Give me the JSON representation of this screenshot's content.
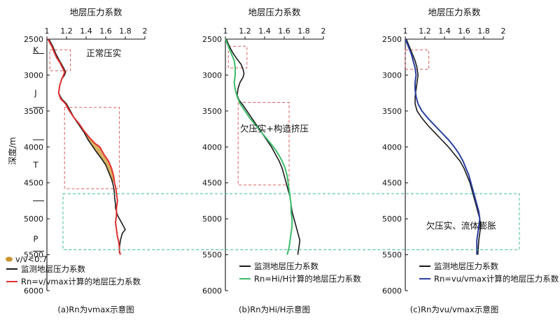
{
  "chart_data": [
    {
      "type": "line",
      "title": "地层压力系数",
      "ylabel": "深度/m",
      "xlim": [
        1,
        2
      ],
      "ylim": [
        6000,
        2500
      ],
      "xticks": [
        "1",
        "1.2",
        "1.4",
        "1.6",
        "1.8",
        "2"
      ],
      "yticks": [
        "2500",
        "3000",
        "3500",
        "4000",
        "4500",
        "5000",
        "5500",
        "6000"
      ],
      "grid": false,
      "legend": "bottom-left",
      "strata": [
        {
          "label": "K",
          "depth": 2650
        },
        {
          "label": "J",
          "depth": 3250
        },
        {
          "label": "T",
          "depth": 4250
        },
        {
          "label": "P",
          "depth": 5280
        }
      ],
      "strata_boundaries": [
        2700,
        3450,
        3900,
        4750,
        5450
      ],
      "annotations": [
        {
          "text": "正常压实",
          "x": 1.58,
          "y": 2700
        }
      ],
      "dashed_boxes": [
        {
          "x": [
            1.03,
            1.24
          ],
          "y": [
            2650,
            2940
          ],
          "color": "#e05a5a"
        },
        {
          "x": [
            1.18,
            1.74
          ],
          "y": [
            3450,
            4580
          ],
          "color": "#e05a5a"
        }
      ],
      "shaded_label": "v/v<0.7",
      "series": [
        {
          "name": "监测地层压力系数",
          "color": "#1a1a1a",
          "x": [
            1.02,
            1.06,
            1.09,
            1.12,
            1.15,
            1.17,
            1.19,
            1.18,
            1.15,
            1.13,
            1.12,
            1.15,
            1.2,
            1.24,
            1.28,
            1.33,
            1.38,
            1.42,
            1.46,
            1.5,
            1.55,
            1.6,
            1.63,
            1.66,
            1.68,
            1.69,
            1.69,
            1.7,
            1.7,
            1.71,
            1.72,
            1.74,
            1.76,
            1.78,
            1.8,
            1.77,
            1.75,
            1.74,
            1.74
          ],
          "y": [
            2500,
            2600,
            2700,
            2780,
            2850,
            2900,
            2960,
            3000,
            3060,
            3150,
            3250,
            3330,
            3400,
            3500,
            3600,
            3700,
            3800,
            3900,
            3980,
            4060,
            4150,
            4250,
            4350,
            4450,
            4550,
            4650,
            4700,
            4800,
            4850,
            4900,
            4950,
            5000,
            5050,
            5100,
            5150,
            5200,
            5300,
            5400,
            5480
          ]
        },
        {
          "name": "计算的地层压力系数",
          "prefix": "Rn=v/v",
          "suffix": "max",
          "color": "#e03030",
          "x": [
            1.01,
            1.05,
            1.08,
            1.1,
            1.13,
            1.16,
            1.18,
            1.17,
            1.15,
            1.13,
            1.12,
            1.14,
            1.19,
            1.23,
            1.27,
            1.33,
            1.38,
            1.44,
            1.49,
            1.54,
            1.58,
            1.63,
            1.66,
            1.68,
            1.69,
            1.7,
            1.71,
            1.72,
            1.71,
            1.71,
            1.7,
            1.71,
            1.72,
            1.73,
            1.74,
            1.74,
            1.75
          ],
          "y": [
            2500,
            2600,
            2700,
            2760,
            2820,
            2900,
            2960,
            3000,
            3060,
            3150,
            3250,
            3330,
            3400,
            3500,
            3580,
            3680,
            3780,
            3880,
            3950,
            4000,
            4100,
            4200,
            4300,
            4400,
            4500,
            4550,
            4650,
            4750,
            4850,
            4950,
            5050,
            5150,
            5250,
            5300,
            5400,
            5450,
            5500
          ]
        }
      ],
      "caption": {
        "prefix": "(a)",
        "mid": "为",
        "suffix": "示意图",
        "r": "R",
        "rsub": "n",
        "v": "v",
        "vsub": "max"
      }
    },
    {
      "type": "line",
      "title": "地层压力系数",
      "xlim": [
        1,
        2
      ],
      "ylim": [
        6000,
        2500
      ],
      "xticks": [
        "1",
        "1.2",
        "1.4",
        "1.6",
        "1.8",
        "2"
      ],
      "yticks": [
        "2500",
        "3000",
        "3500",
        "4000",
        "4500",
        "5000",
        "5500",
        "6000"
      ],
      "grid": false,
      "legend": "bottom-left",
      "annotations": [
        {
          "text": "欠压实+构造挤压",
          "x": 1.5,
          "y": 3750
        }
      ],
      "dashed_boxes": [
        {
          "x": [
            1.03,
            1.22
          ],
          "y": [
            2600,
            2900
          ],
          "color": "#e05a5a"
        },
        {
          "x": [
            1.13,
            1.65
          ],
          "y": [
            3380,
            4530
          ],
          "color": "#e05a5a"
        }
      ],
      "series": [
        {
          "name": "监测地层压力系数",
          "color": "#1a1a1a",
          "x": [
            1.01,
            1.04,
            1.08,
            1.12,
            1.16,
            1.18,
            1.19,
            1.18,
            1.15,
            1.13,
            1.12,
            1.14,
            1.18,
            1.22,
            1.27,
            1.32,
            1.37,
            1.42,
            1.47,
            1.51,
            1.55,
            1.58,
            1.6,
            1.62,
            1.64,
            1.66,
            1.67,
            1.68,
            1.7,
            1.72,
            1.74,
            1.75,
            1.76,
            1.75,
            1.74,
            1.74
          ],
          "y": [
            2500,
            2600,
            2700,
            2780,
            2850,
            2920,
            2980,
            3030,
            3100,
            3180,
            3280,
            3350,
            3420,
            3500,
            3600,
            3700,
            3800,
            3900,
            4000,
            4100,
            4200,
            4300,
            4400,
            4500,
            4600,
            4700,
            4800,
            4900,
            5000,
            5100,
            5200,
            5250,
            5300,
            5400,
            5480,
            5500
          ]
        },
        {
          "name": "计算的地层压力系数",
          "prefix": "Rn=Hi/H",
          "suffix": "",
          "color": "#3dbb6a",
          "x": [
            1.0,
            1.03,
            1.06,
            1.09,
            1.1,
            1.1,
            1.09,
            1.1,
            1.12,
            1.15,
            1.2,
            1.25,
            1.31,
            1.37,
            1.43,
            1.49,
            1.54,
            1.58,
            1.61,
            1.63,
            1.64,
            1.65,
            1.66,
            1.67,
            1.67,
            1.68,
            1.68,
            1.67,
            1.66,
            1.65,
            1.63
          ],
          "y": [
            2500,
            2600,
            2700,
            2800,
            2900,
            3000,
            3100,
            3200,
            3300,
            3400,
            3500,
            3600,
            3700,
            3800,
            3900,
            4000,
            4100,
            4200,
            4300,
            4400,
            4500,
            4600,
            4700,
            4800,
            4900,
            5000,
            5100,
            5200,
            5300,
            5400,
            5500
          ]
        }
      ],
      "caption": {
        "prefix": "(b)",
        "mid": "为",
        "suffix": "示意图",
        "r": "R",
        "rsub": "n",
        "v": "Hi/H",
        "vsub": ""
      }
    },
    {
      "type": "line",
      "title": "地层压力系数",
      "xlim": [
        1,
        2
      ],
      "ylim": [
        6000,
        2500
      ],
      "xticks": [
        "1",
        "1.2",
        "1.4",
        "1.6",
        "1.8",
        "2"
      ],
      "yticks": [
        "2500",
        "3000",
        "3500",
        "4000",
        "4500",
        "5000",
        "5500",
        "6000"
      ],
      "grid": false,
      "legend": "bottom-left",
      "annotations": [
        {
          "text": "欠压实、流体膨胀",
          "x": 1.57,
          "y": 5100
        }
      ],
      "dashed_boxes": [
        {
          "x": [
            1.0,
            1.24
          ],
          "y": [
            2650,
            2920
          ],
          "color": "#e05a5a"
        }
      ],
      "series": [
        {
          "name": "监测地层压力系数",
          "color": "#1a1a1a",
          "x": [
            1.01,
            1.04,
            1.07,
            1.1,
            1.12,
            1.13,
            1.12,
            1.11,
            1.1,
            1.1,
            1.12,
            1.17,
            1.23,
            1.3,
            1.37,
            1.44,
            1.5,
            1.56,
            1.6,
            1.63,
            1.66,
            1.68,
            1.7,
            1.72,
            1.74,
            1.76,
            1.77,
            1.76,
            1.75,
            1.74
          ],
          "y": [
            2500,
            2600,
            2700,
            2800,
            2900,
            3000,
            3100,
            3200,
            3300,
            3400,
            3500,
            3600,
            3700,
            3800,
            3900,
            4000,
            4100,
            4200,
            4300,
            4400,
            4500,
            4600,
            4700,
            4800,
            4900,
            5000,
            5100,
            5200,
            5300,
            5500
          ]
        },
        {
          "name": "计算的地层压力系数",
          "prefix": "Rn=vu/v",
          "suffix": "max",
          "color": "#2a3fa0",
          "x": [
            1.0,
            1.03,
            1.06,
            1.08,
            1.1,
            1.11,
            1.1,
            1.1,
            1.11,
            1.13,
            1.17,
            1.23,
            1.3,
            1.37,
            1.44,
            1.5,
            1.55,
            1.59,
            1.62,
            1.65,
            1.67,
            1.69,
            1.71,
            1.73,
            1.75,
            1.76,
            1.75,
            1.74,
            1.73,
            1.73
          ],
          "y": [
            2500,
            2600,
            2700,
            2800,
            2900,
            3000,
            3100,
            3200,
            3300,
            3400,
            3500,
            3600,
            3700,
            3800,
            3900,
            4000,
            4100,
            4200,
            4300,
            4400,
            4500,
            4600,
            4700,
            4800,
            4900,
            5000,
            5100,
            5200,
            5300,
            5500
          ]
        }
      ],
      "caption": {
        "prefix": "(c)",
        "mid": "为",
        "suffix": "示意图",
        "r": "R",
        "rsub": "n",
        "v": "vu/v",
        "vsub": "max"
      }
    }
  ],
  "overlay": {
    "dashed_box_depth": [
      4650,
      5430
    ],
    "color": "#3dbb9a"
  }
}
